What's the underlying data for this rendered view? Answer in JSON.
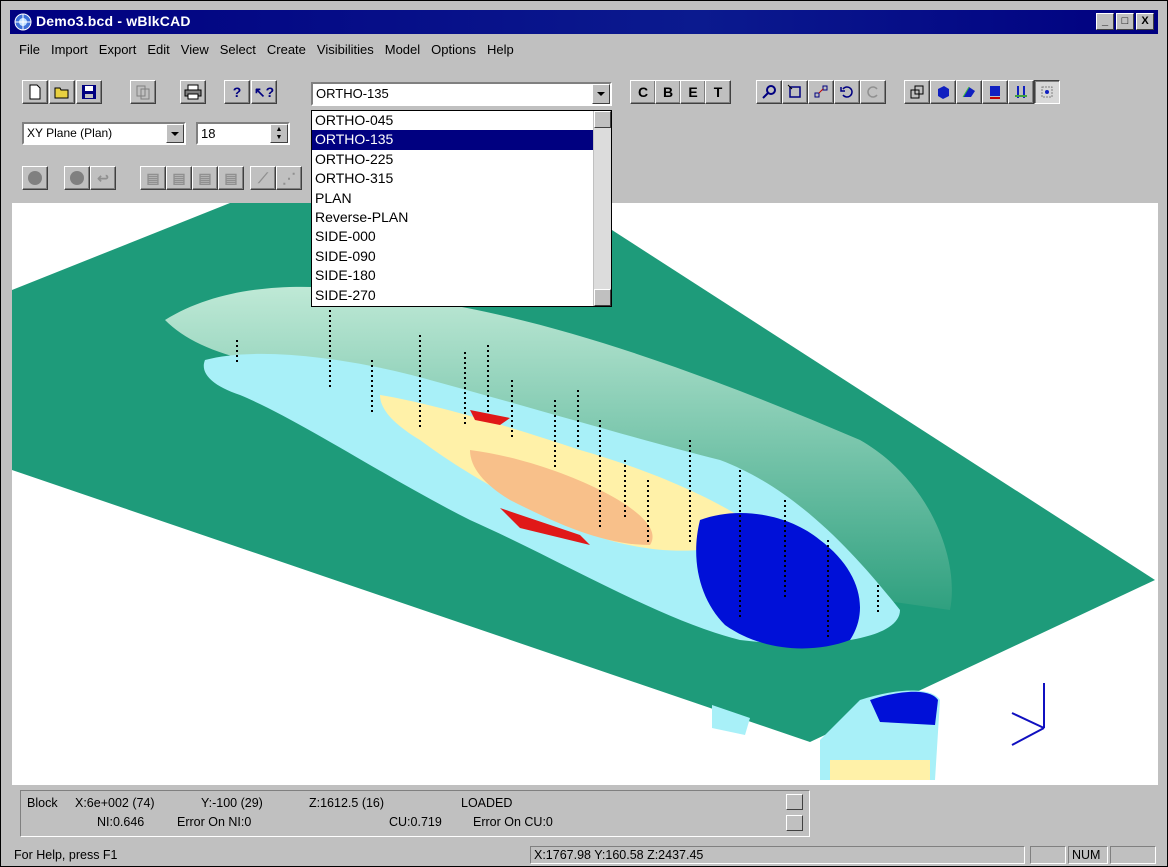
{
  "window": {
    "title": "Demo3.bcd - wBlkCAD",
    "buttons": [
      "_",
      "□",
      "X"
    ]
  },
  "menu": [
    {
      "label": "File"
    },
    {
      "label": "Import"
    },
    {
      "label": "Export"
    },
    {
      "label": "Edit"
    },
    {
      "label": "View"
    },
    {
      "label": "Select"
    },
    {
      "label": "Create"
    },
    {
      "label": "Visibilities"
    },
    {
      "label": "Model"
    },
    {
      "label": "Options"
    },
    {
      "label": "Help"
    }
  ],
  "toolbar": {
    "view_combo": "ORTHO-135",
    "plane_combo": "XY Plane (Plan)",
    "level_value": "18",
    "letter_buttons": [
      "C",
      "B",
      "E",
      "T"
    ],
    "icons": [
      "new-icon",
      "open-icon",
      "save-icon",
      "copy-icon",
      "print-icon",
      "help-icon",
      "context-help-icon",
      "zoom-icon",
      "select-box-icon",
      "move-icon",
      "rotate-icon",
      "redo-icon",
      "3d-view-icon",
      "solid-icon",
      "surface-icon",
      "section-icon",
      "drillhole-icon",
      "render-icon"
    ]
  },
  "dropdown": {
    "selected_index": 1,
    "options": [
      "ORTHO-045",
      "ORTHO-135",
      "ORTHO-225",
      "ORTHO-315",
      "PLAN",
      "Reverse-PLAN",
      "SIDE-000",
      "SIDE-090",
      "SIDE-180",
      "SIDE-270"
    ]
  },
  "info": {
    "block_label": "Block",
    "x": "X:6e+002 (74)",
    "y": "Y:-100 (29)",
    "z": "Z:1612.5 (16)",
    "state": "LOADED",
    "ni": "NI:0.646",
    "ni_error": "Error On NI:0",
    "cu": "CU:0.719",
    "cu_error": "Error On CU:0"
  },
  "statusbar": {
    "help_text": "For Help, press F1",
    "coords": "X:1767.98 Y:160.58 Z:2437.45",
    "num": "NUM"
  },
  "colors": {
    "titlebar": "#000080",
    "terrain": "#1e9b7a",
    "wall": "#5fbf9a",
    "orebody_cyan": "#a8f0f8",
    "orebody_yellow": "#fff1a8",
    "orebody_orange": "#f8c08a",
    "orebody_blue": "#0010d8",
    "orebody_red": "#e01818"
  }
}
